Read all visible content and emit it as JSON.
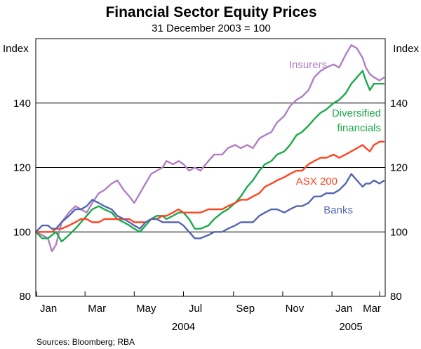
{
  "chart_data": {
    "type": "line",
    "title": "Financial Sector Equity Prices",
    "subtitle": "31 December 2003 = 100",
    "ylabel_left": "Index",
    "ylabel_right": "Index",
    "ylim": [
      80,
      160
    ],
    "yticks": [
      80,
      100,
      120,
      140
    ],
    "xlim": [
      "2003-12-31",
      "2005-03-08"
    ],
    "x_ticks": [
      {
        "label": "Jan",
        "date": "2004-01-01"
      },
      {
        "label": "Mar",
        "date": "2004-03-01"
      },
      {
        "label": "May",
        "date": "2004-05-01"
      },
      {
        "label": "Jul",
        "date": "2004-07-01"
      },
      {
        "label": "Sep",
        "date": "2004-09-01"
      },
      {
        "label": "Nov",
        "date": "2004-11-01"
      },
      {
        "label": "Jan",
        "date": "2005-01-01"
      },
      {
        "label": "Mar",
        "date": "2005-03-01"
      }
    ],
    "year_labels": [
      {
        "label": "2004",
        "date": "2004-07-01"
      },
      {
        "label": "2005",
        "date": "2005-02-01"
      }
    ],
    "grid": true,
    "series": [
      {
        "name": "Insurers",
        "color": "#b07ec4",
        "points": [
          [
            "2003-12-31",
            100
          ],
          [
            "2004-01-08",
            99
          ],
          [
            "2004-01-15",
            98
          ],
          [
            "2004-01-20",
            94
          ],
          [
            "2004-01-25",
            96
          ],
          [
            "2004-02-01",
            103
          ],
          [
            "2004-02-10",
            106
          ],
          [
            "2004-02-18",
            108
          ],
          [
            "2004-02-25",
            107
          ],
          [
            "2004-03-03",
            106
          ],
          [
            "2004-03-10",
            109
          ],
          [
            "2004-03-18",
            112
          ],
          [
            "2004-03-25",
            113
          ],
          [
            "2004-04-03",
            115
          ],
          [
            "2004-04-10",
            116
          ],
          [
            "2004-04-18",
            113
          ],
          [
            "2004-04-25",
            111
          ],
          [
            "2004-05-01",
            109
          ],
          [
            "2004-05-08",
            112
          ],
          [
            "2004-05-15",
            115
          ],
          [
            "2004-05-22",
            118
          ],
          [
            "2004-05-29",
            119
          ],
          [
            "2004-06-05",
            120
          ],
          [
            "2004-06-10",
            122
          ],
          [
            "2004-06-18",
            121
          ],
          [
            "2004-06-25",
            122
          ],
          [
            "2004-07-01",
            121
          ],
          [
            "2004-07-08",
            119
          ],
          [
            "2004-07-15",
            120
          ],
          [
            "2004-07-22",
            119
          ],
          [
            "2004-08-01",
            122
          ],
          [
            "2004-08-08",
            124
          ],
          [
            "2004-08-18",
            124
          ],
          [
            "2004-08-25",
            126
          ],
          [
            "2004-09-03",
            127
          ],
          [
            "2004-09-10",
            126
          ],
          [
            "2004-09-18",
            127
          ],
          [
            "2004-09-25",
            126
          ],
          [
            "2004-10-03",
            129
          ],
          [
            "2004-10-10",
            130
          ],
          [
            "2004-10-18",
            131
          ],
          [
            "2004-10-25",
            134
          ],
          [
            "2004-11-03",
            136
          ],
          [
            "2004-11-10",
            139
          ],
          [
            "2004-11-18",
            141
          ],
          [
            "2004-11-25",
            142
          ],
          [
            "2004-12-03",
            144
          ],
          [
            "2004-12-10",
            148
          ],
          [
            "2004-12-18",
            150
          ],
          [
            "2004-12-25",
            151
          ],
          [
            "2005-01-03",
            152
          ],
          [
            "2005-01-10",
            151
          ],
          [
            "2005-01-18",
            155
          ],
          [
            "2005-01-25",
            158
          ],
          [
            "2005-02-01",
            157
          ],
          [
            "2005-02-08",
            154
          ],
          [
            "2005-02-12",
            151
          ],
          [
            "2005-02-17",
            149
          ],
          [
            "2005-02-22",
            148
          ],
          [
            "2005-03-01",
            147
          ],
          [
            "2005-03-07",
            148
          ]
        ]
      },
      {
        "name": "Diversified financials",
        "color": "#1aaa4a",
        "points": [
          [
            "2003-12-31",
            100
          ],
          [
            "2004-01-08",
            98
          ],
          [
            "2004-01-15",
            98
          ],
          [
            "2004-01-20",
            99
          ],
          [
            "2004-01-25",
            100
          ],
          [
            "2004-02-01",
            97
          ],
          [
            "2004-02-10",
            99
          ],
          [
            "2004-02-18",
            101
          ],
          [
            "2004-02-25",
            103
          ],
          [
            "2004-03-03",
            105
          ],
          [
            "2004-03-10",
            107
          ],
          [
            "2004-03-18",
            108
          ],
          [
            "2004-03-25",
            107
          ],
          [
            "2004-04-03",
            106
          ],
          [
            "2004-04-10",
            104
          ],
          [
            "2004-04-18",
            103
          ],
          [
            "2004-04-25",
            102
          ],
          [
            "2004-05-01",
            101
          ],
          [
            "2004-05-08",
            100
          ],
          [
            "2004-05-15",
            102
          ],
          [
            "2004-05-22",
            104
          ],
          [
            "2004-05-29",
            105
          ],
          [
            "2004-06-05",
            105
          ],
          [
            "2004-06-10",
            104
          ],
          [
            "2004-06-18",
            105
          ],
          [
            "2004-06-25",
            106
          ],
          [
            "2004-07-01",
            106
          ],
          [
            "2004-07-08",
            104
          ],
          [
            "2004-07-15",
            101
          ],
          [
            "2004-07-22",
            101
          ],
          [
            "2004-08-01",
            102
          ],
          [
            "2004-08-08",
            104
          ],
          [
            "2004-08-18",
            106
          ],
          [
            "2004-08-25",
            107
          ],
          [
            "2004-09-03",
            109
          ],
          [
            "2004-09-10",
            111
          ],
          [
            "2004-09-18",
            114
          ],
          [
            "2004-09-25",
            116
          ],
          [
            "2004-10-03",
            119
          ],
          [
            "2004-10-10",
            121
          ],
          [
            "2004-10-18",
            122
          ],
          [
            "2004-10-25",
            124
          ],
          [
            "2004-11-03",
            125
          ],
          [
            "2004-11-10",
            127
          ],
          [
            "2004-11-18",
            130
          ],
          [
            "2004-11-25",
            131
          ],
          [
            "2004-12-03",
            133
          ],
          [
            "2004-12-10",
            135
          ],
          [
            "2004-12-18",
            137
          ],
          [
            "2004-12-25",
            138
          ],
          [
            "2005-01-03",
            140
          ],
          [
            "2005-01-10",
            141
          ],
          [
            "2005-01-18",
            143
          ],
          [
            "2005-01-25",
            146
          ],
          [
            "2005-02-01",
            148
          ],
          [
            "2005-02-08",
            150
          ],
          [
            "2005-02-12",
            147
          ],
          [
            "2005-02-17",
            144
          ],
          [
            "2005-02-22",
            146
          ],
          [
            "2005-03-01",
            146
          ],
          [
            "2005-03-07",
            146
          ]
        ]
      },
      {
        "name": "ASX 200",
        "color": "#ff4422",
        "points": [
          [
            "2003-12-31",
            100
          ],
          [
            "2004-01-08",
            100
          ],
          [
            "2004-01-15",
            100
          ],
          [
            "2004-01-20",
            100
          ],
          [
            "2004-01-25",
            101
          ],
          [
            "2004-02-01",
            101
          ],
          [
            "2004-02-10",
            102
          ],
          [
            "2004-02-18",
            103
          ],
          [
            "2004-02-25",
            104
          ],
          [
            "2004-03-03",
            104
          ],
          [
            "2004-03-10",
            103
          ],
          [
            "2004-03-18",
            103
          ],
          [
            "2004-03-25",
            104
          ],
          [
            "2004-04-03",
            104
          ],
          [
            "2004-04-10",
            104
          ],
          [
            "2004-04-18",
            104
          ],
          [
            "2004-04-25",
            104
          ],
          [
            "2004-05-01",
            103
          ],
          [
            "2004-05-08",
            103
          ],
          [
            "2004-05-15",
            103
          ],
          [
            "2004-05-22",
            104
          ],
          [
            "2004-05-29",
            104
          ],
          [
            "2004-06-05",
            105
          ],
          [
            "2004-06-10",
            105
          ],
          [
            "2004-06-18",
            106
          ],
          [
            "2004-06-25",
            107
          ],
          [
            "2004-07-01",
            106
          ],
          [
            "2004-07-08",
            106
          ],
          [
            "2004-07-15",
            106
          ],
          [
            "2004-07-22",
            106
          ],
          [
            "2004-08-01",
            107
          ],
          [
            "2004-08-08",
            107
          ],
          [
            "2004-08-18",
            107
          ],
          [
            "2004-08-25",
            108
          ],
          [
            "2004-09-03",
            109
          ],
          [
            "2004-09-10",
            110
          ],
          [
            "2004-09-18",
            110
          ],
          [
            "2004-09-25",
            111
          ],
          [
            "2004-10-03",
            112
          ],
          [
            "2004-10-10",
            114
          ],
          [
            "2004-10-18",
            115
          ],
          [
            "2004-10-25",
            116
          ],
          [
            "2004-11-03",
            117
          ],
          [
            "2004-11-10",
            118
          ],
          [
            "2004-11-18",
            119
          ],
          [
            "2004-11-25",
            119
          ],
          [
            "2004-12-03",
            121
          ],
          [
            "2004-12-10",
            122
          ],
          [
            "2004-12-18",
            123
          ],
          [
            "2004-12-25",
            123
          ],
          [
            "2005-01-03",
            124
          ],
          [
            "2005-01-10",
            123
          ],
          [
            "2005-01-18",
            124
          ],
          [
            "2005-01-25",
            125
          ],
          [
            "2005-02-01",
            126
          ],
          [
            "2005-02-08",
            127
          ],
          [
            "2005-02-12",
            126
          ],
          [
            "2005-02-17",
            125
          ],
          [
            "2005-02-22",
            127
          ],
          [
            "2005-03-01",
            128
          ],
          [
            "2005-03-07",
            128
          ]
        ]
      },
      {
        "name": "Banks",
        "color": "#5566b0",
        "points": [
          [
            "2003-12-31",
            100
          ],
          [
            "2004-01-08",
            102
          ],
          [
            "2004-01-15",
            102
          ],
          [
            "2004-01-20",
            101
          ],
          [
            "2004-01-25",
            101
          ],
          [
            "2004-02-01",
            103
          ],
          [
            "2004-02-10",
            105
          ],
          [
            "2004-02-18",
            107
          ],
          [
            "2004-02-25",
            107
          ],
          [
            "2004-03-03",
            108
          ],
          [
            "2004-03-10",
            110
          ],
          [
            "2004-03-18",
            109
          ],
          [
            "2004-03-25",
            108
          ],
          [
            "2004-04-03",
            107
          ],
          [
            "2004-04-10",
            105
          ],
          [
            "2004-04-18",
            104
          ],
          [
            "2004-04-25",
            103
          ],
          [
            "2004-05-01",
            102
          ],
          [
            "2004-05-08",
            101
          ],
          [
            "2004-05-15",
            103
          ],
          [
            "2004-05-22",
            104
          ],
          [
            "2004-05-29",
            104
          ],
          [
            "2004-06-05",
            103
          ],
          [
            "2004-06-10",
            103
          ],
          [
            "2004-06-18",
            103
          ],
          [
            "2004-06-25",
            103
          ],
          [
            "2004-07-01",
            102
          ],
          [
            "2004-07-08",
            100
          ],
          [
            "2004-07-15",
            98
          ],
          [
            "2004-07-22",
            98
          ],
          [
            "2004-08-01",
            99
          ],
          [
            "2004-08-08",
            100
          ],
          [
            "2004-08-18",
            100
          ],
          [
            "2004-08-25",
            101
          ],
          [
            "2004-09-03",
            102
          ],
          [
            "2004-09-10",
            103
          ],
          [
            "2004-09-18",
            103
          ],
          [
            "2004-09-25",
            103
          ],
          [
            "2004-10-03",
            105
          ],
          [
            "2004-10-10",
            106
          ],
          [
            "2004-10-18",
            107
          ],
          [
            "2004-10-25",
            107
          ],
          [
            "2004-11-03",
            106
          ],
          [
            "2004-11-10",
            107
          ],
          [
            "2004-11-18",
            108
          ],
          [
            "2004-11-25",
            108
          ],
          [
            "2004-12-03",
            109
          ],
          [
            "2004-12-10",
            111
          ],
          [
            "2004-12-18",
            111
          ],
          [
            "2004-12-25",
            112
          ],
          [
            "2005-01-03",
            112
          ],
          [
            "2005-01-10",
            113
          ],
          [
            "2005-01-18",
            115
          ],
          [
            "2005-01-25",
            118
          ],
          [
            "2005-02-01",
            116
          ],
          [
            "2005-02-08",
            114
          ],
          [
            "2005-02-12",
            115
          ],
          [
            "2005-02-17",
            115
          ],
          [
            "2005-02-22",
            116
          ],
          [
            "2005-03-01",
            115
          ],
          [
            "2005-03-07",
            116
          ]
        ]
      }
    ],
    "series_labels": [
      {
        "series": "Insurers",
        "lines": [
          "Insurers"
        ]
      },
      {
        "series": "Diversified financials",
        "lines": [
          "Diversified",
          "financials"
        ]
      },
      {
        "series": "ASX 200",
        "lines": [
          "ASX 200"
        ]
      },
      {
        "series": "Banks",
        "lines": [
          "Banks"
        ]
      }
    ],
    "source": "Sources: Bloomberg; RBA"
  }
}
